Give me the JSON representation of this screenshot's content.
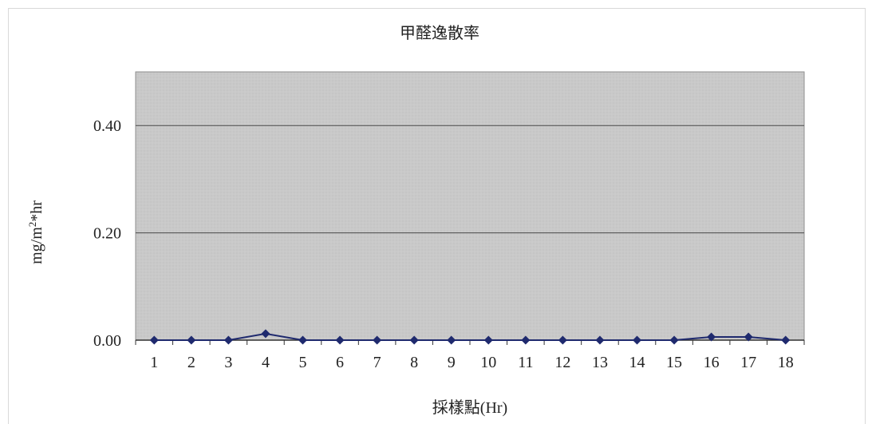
{
  "chart_data": {
    "type": "line",
    "title": "甲醛逸散率",
    "xlabel": "採樣點(Hr)",
    "ylabel": "mg/m²*hr",
    "categories": [
      "1",
      "2",
      "3",
      "4",
      "5",
      "6",
      "7",
      "8",
      "9",
      "10",
      "11",
      "12",
      "13",
      "14",
      "15",
      "16",
      "17",
      "18"
    ],
    "series": [
      {
        "values": [
          0.0,
          0.0,
          0.0,
          0.012,
          0.0,
          0.0,
          0.0,
          0.0,
          0.0,
          0.0,
          0.0,
          0.0,
          0.0,
          0.0,
          0.0,
          0.006,
          0.006,
          0.0
        ]
      }
    ],
    "y_ticks": [
      "0.00",
      "0.20",
      "0.40"
    ],
    "ylim": [
      0,
      0.5
    ],
    "grid": true,
    "legend": "none",
    "colors": {
      "plot_background": "#c9c9c9",
      "series_line": "#1f2a6e",
      "gridline": "#4a4a4a"
    }
  }
}
